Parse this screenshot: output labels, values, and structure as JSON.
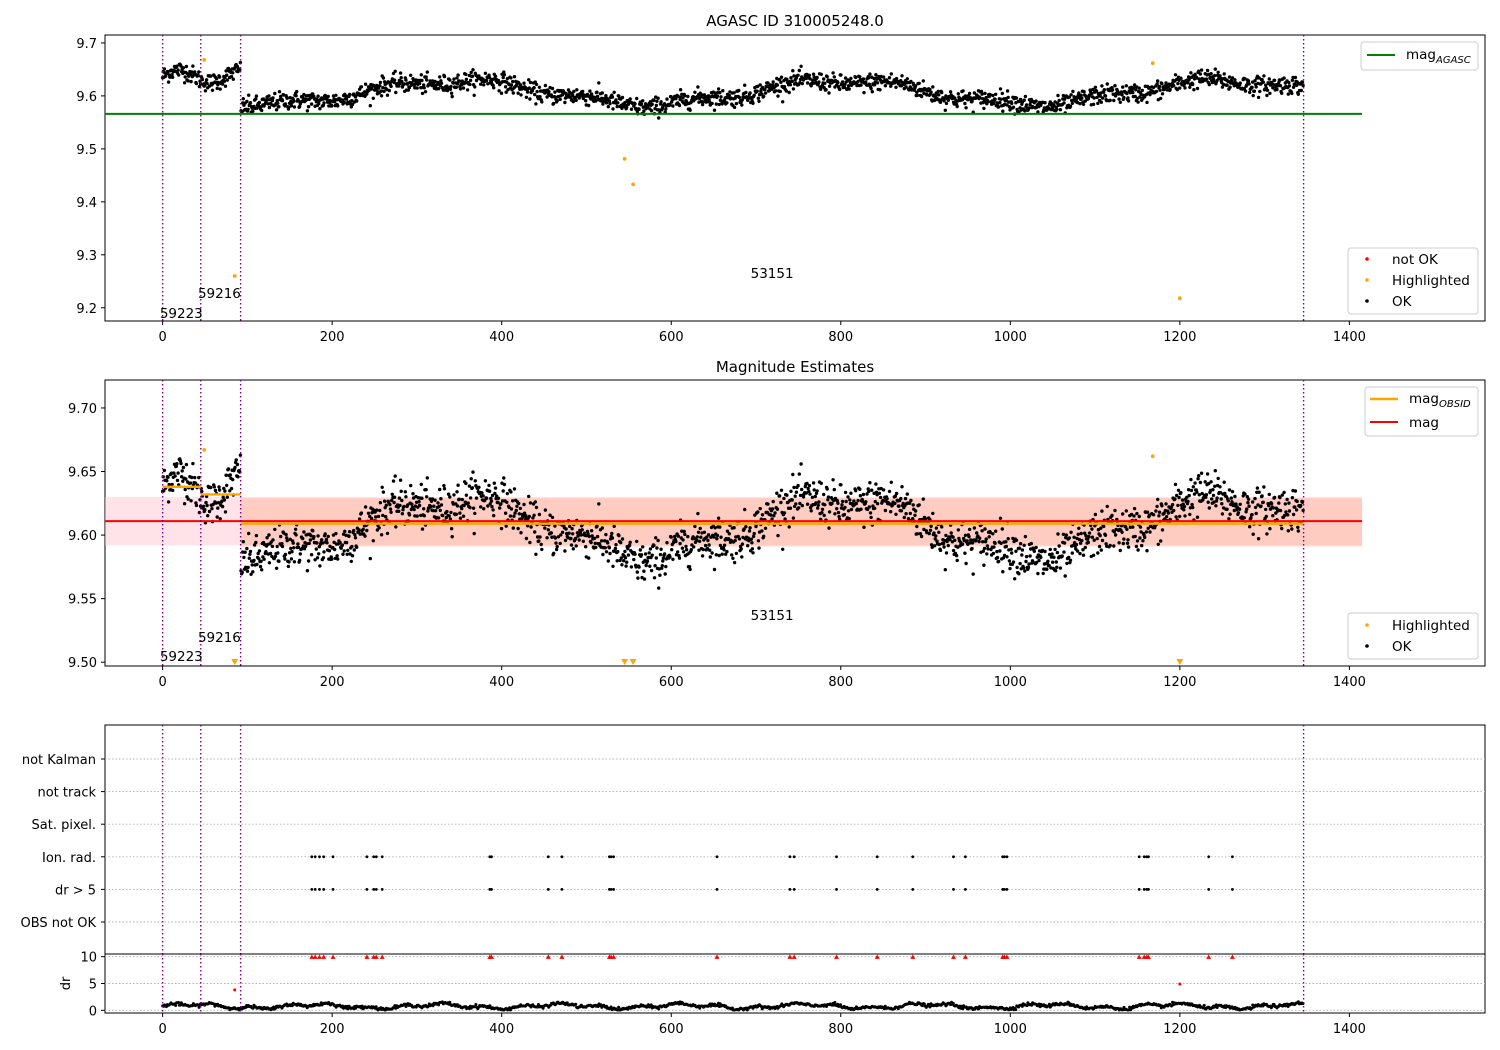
{
  "chart_data": [
    {
      "type": "scatter",
      "title": "AGASC ID 310005248.0",
      "xlim": [
        -68,
        1560
      ],
      "ylim": [
        9.175,
        9.715
      ],
      "x_ticks": [
        0,
        200,
        400,
        600,
        800,
        1000,
        1200,
        1400
      ],
      "y_ticks": [
        9.2,
        9.3,
        9.4,
        9.5,
        9.6,
        9.7
      ],
      "y_tick_labels": [
        "9.2",
        "9.3",
        "9.4",
        "9.5",
        "9.6",
        "9.7"
      ],
      "grid": false,
      "mag_agasc": 9.566,
      "mag_agasc_x_range": [
        -68,
        1415
      ],
      "obsid_boundaries": [
        0,
        45,
        92,
        1346
      ],
      "obsid_labels": [
        {
          "text": "59223",
          "x": 22,
          "y": 9.19
        },
        {
          "text": "59216",
          "x": 67,
          "y": 9.228
        },
        {
          "text": "53151",
          "x": 719,
          "y": 9.266
        }
      ],
      "highlighted_points": [
        [
          49,
          9.668
        ],
        [
          85,
          9.26
        ],
        [
          545,
          9.481
        ],
        [
          555,
          9.433
        ],
        [
          1168,
          9.662
        ],
        [
          1200,
          9.218
        ]
      ],
      "not_ok_points": [],
      "legend_upper": {
        "position": "upper right",
        "entries": [
          "mag$_{AGASC}$"
        ]
      },
      "legend_lower": {
        "position": "lower right",
        "entries": [
          "not OK",
          "Highlighted",
          "OK"
        ]
      },
      "ok_series_description_x_range": [
        0,
        1346
      ]
    },
    {
      "type": "scatter",
      "title": "Magnitude Estimates",
      "xlim": [
        -68,
        1560
      ],
      "ylim": [
        9.497,
        9.722
      ],
      "x_ticks": [
        0,
        200,
        400,
        600,
        800,
        1000,
        1200,
        1400
      ],
      "y_ticks": [
        9.5,
        9.55,
        9.6,
        9.65,
        9.7
      ],
      "y_tick_labels": [
        "9.50",
        "9.55",
        "9.60",
        "9.65",
        "9.70"
      ],
      "grid": false,
      "mag": 9.611,
      "mag_band": [
        9.592,
        9.63
      ],
      "mag_band_x_range": [
        -68,
        1415
      ],
      "obsid_mags": [
        {
          "x_range": [
            0,
            45
          ],
          "mag": 9.638
        },
        {
          "x_range": [
            45,
            92
          ],
          "mag": 9.632
        },
        {
          "x_range": [
            92,
            1346
          ],
          "mag": 9.609
        }
      ],
      "obsid_band": {
        "x_range": [
          92,
          1415
        ],
        "range": [
          9.591,
          9.629
        ]
      },
      "obsid_boundaries": [
        0,
        45,
        92,
        1346
      ],
      "obsid_labels": [
        {
          "text": "59223",
          "x": 22,
          "y": 9.505
        },
        {
          "text": "59216",
          "x": 67,
          "y": 9.52
        },
        {
          "text": "53151",
          "x": 719,
          "y": 9.537
        }
      ],
      "highlighted_points": [
        [
          49,
          9.667
        ],
        [
          1168,
          9.662
        ]
      ],
      "clipped_markers": [
        85,
        545,
        555,
        1200
      ],
      "legend_upper": {
        "position": "upper right",
        "entries": [
          "mag$_{OBSID}$",
          "mag"
        ]
      },
      "legend_lower": {
        "position": "lower right",
        "entries": [
          "Highlighted",
          "OK"
        ]
      }
    },
    {
      "type": "scatter",
      "title": "",
      "xlim": [
        -68,
        1560
      ],
      "x_ticks": [
        0,
        200,
        400,
        600,
        800,
        1000,
        1200,
        1400
      ],
      "categories": [
        "not Kalman",
        "not track",
        "Sat. pixel.",
        "Ion. rad.",
        "dr > 5",
        "OBS not OK"
      ],
      "flag_x": [
        176,
        180,
        185,
        190,
        201,
        241,
        249,
        252,
        259,
        386,
        388,
        455,
        471,
        527,
        529,
        532,
        654,
        740,
        745,
        795,
        843,
        885,
        933,
        947,
        991,
        993,
        996,
        1152,
        1158,
        1161,
        1163,
        1234,
        1262
      ],
      "flagged_rows": [
        "Ion. rad.",
        "dr > 5"
      ],
      "obsid_boundaries": [
        0,
        45,
        92,
        1346
      ]
    },
    {
      "type": "scatter",
      "title": "",
      "ylabel": "dr",
      "xlim": [
        -68,
        1560
      ],
      "ylim": [
        -0.5,
        10.5
      ],
      "x_ticks": [
        0,
        200,
        400,
        600,
        800,
        1000,
        1200,
        1400
      ],
      "y_ticks": [
        0,
        5,
        10
      ],
      "y_tick_labels": [
        "0",
        "5",
        "10"
      ],
      "capped_value": 10,
      "red_points": [
        [
          85,
          3.8
        ],
        [
          1200,
          4.9
        ]
      ],
      "obsid_boundaries": [
        0,
        45,
        92,
        1346
      ]
    }
  ],
  "colors": {
    "ok": "#000000",
    "highlighted": "#ffa500",
    "not_ok": "#ff0000",
    "agasc_line": "#008000",
    "mag_line": "#ff0000",
    "obsid_line": "#ffa500",
    "boundary": "#800080",
    "mag_band": "#ffc0cb",
    "obsid_band": "#ffa07a",
    "grid": "#b0b0b0"
  }
}
